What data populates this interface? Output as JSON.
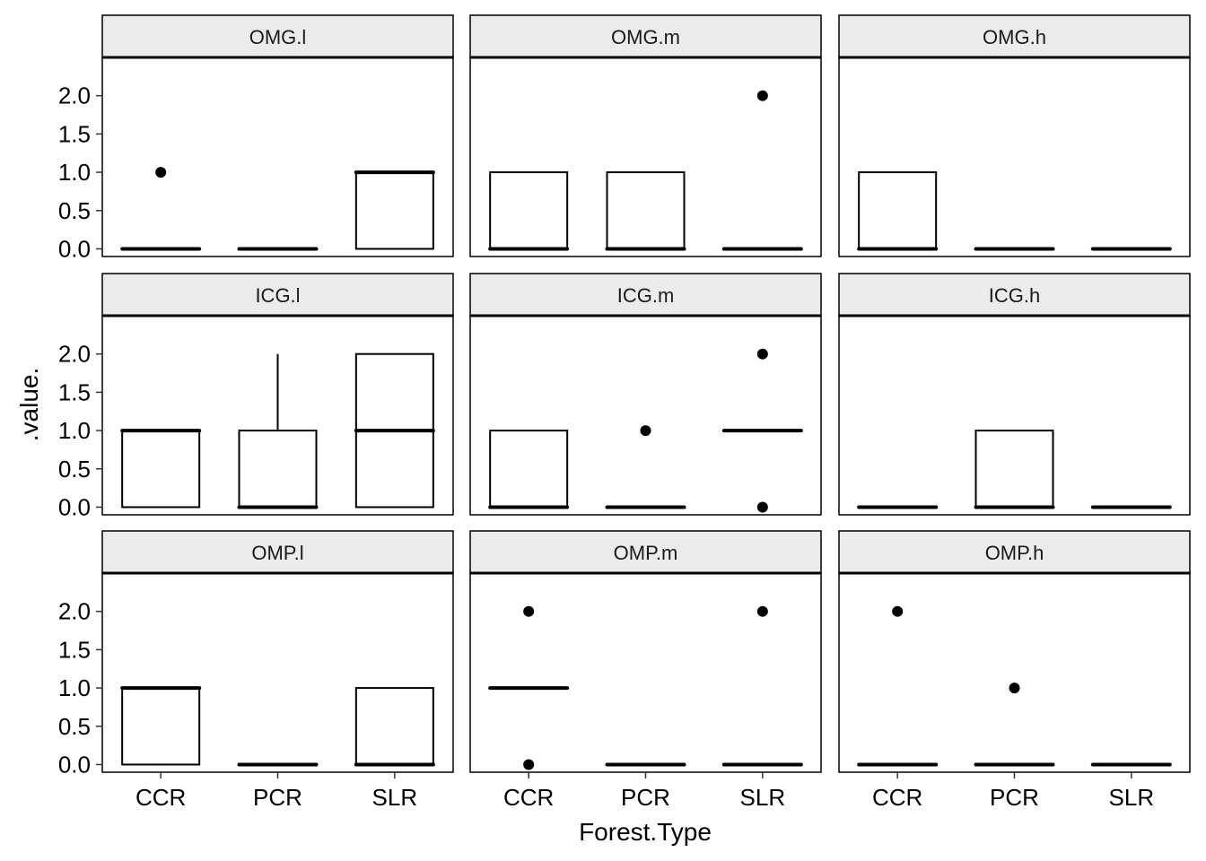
{
  "chart_data": {
    "type": "boxplot",
    "facet_layout": "3x3 grid",
    "xlabel": "Forest.Type",
    "ylabel": ".value.",
    "categories": [
      "CCR",
      "PCR",
      "SLR"
    ],
    "ylim": [
      -0.1,
      2.5
    ],
    "y_ticks": [
      "0.0",
      "0.5",
      "1.0",
      "1.5",
      "2.0"
    ],
    "grid": false,
    "colors": {
      "strip_fill": "#ebebeb",
      "line": "#000000",
      "background": "#ffffff"
    },
    "facets": [
      {
        "label": "OMG.l",
        "boxes": [
          {
            "category": "CCR",
            "q1": 0,
            "median": 0,
            "q3": 0,
            "whisker_low": 0,
            "whisker_high": 0,
            "outliers": [
              1
            ]
          },
          {
            "category": "PCR",
            "q1": 0,
            "median": 0,
            "q3": 0,
            "whisker_low": 0,
            "whisker_high": 0,
            "outliers": []
          },
          {
            "category": "SLR",
            "q1": 0,
            "median": 1,
            "q3": 1,
            "whisker_low": 0,
            "whisker_high": 1,
            "outliers": []
          }
        ]
      },
      {
        "label": "OMG.m",
        "boxes": [
          {
            "category": "CCR",
            "q1": 0,
            "median": 0,
            "q3": 1,
            "whisker_low": 0,
            "whisker_high": 1,
            "outliers": []
          },
          {
            "category": "PCR",
            "q1": 0,
            "median": 0,
            "q3": 1,
            "whisker_low": 0,
            "whisker_high": 1,
            "outliers": []
          },
          {
            "category": "SLR",
            "q1": 0,
            "median": 0,
            "q3": 0,
            "whisker_low": 0,
            "whisker_high": 0,
            "outliers": [
              2
            ]
          }
        ]
      },
      {
        "label": "OMG.h",
        "boxes": [
          {
            "category": "CCR",
            "q1": 0,
            "median": 0,
            "q3": 1,
            "whisker_low": 0,
            "whisker_high": 1,
            "outliers": []
          },
          {
            "category": "PCR",
            "q1": 0,
            "median": 0,
            "q3": 0,
            "whisker_low": 0,
            "whisker_high": 0,
            "outliers": []
          },
          {
            "category": "SLR",
            "q1": 0,
            "median": 0,
            "q3": 0,
            "whisker_low": 0,
            "whisker_high": 0,
            "outliers": []
          }
        ]
      },
      {
        "label": "ICG.l",
        "boxes": [
          {
            "category": "CCR",
            "q1": 0,
            "median": 1,
            "q3": 1,
            "whisker_low": 0,
            "whisker_high": 1,
            "outliers": []
          },
          {
            "category": "PCR",
            "q1": 0,
            "median": 0,
            "q3": 1,
            "whisker_low": 0,
            "whisker_high": 2,
            "outliers": []
          },
          {
            "category": "SLR",
            "q1": 0,
            "median": 1,
            "q3": 2,
            "whisker_low": 0,
            "whisker_high": 2,
            "outliers": []
          }
        ]
      },
      {
        "label": "ICG.m",
        "boxes": [
          {
            "category": "CCR",
            "q1": 0,
            "median": 0,
            "q3": 1,
            "whisker_low": 0,
            "whisker_high": 1,
            "outliers": []
          },
          {
            "category": "PCR",
            "q1": 0,
            "median": 0,
            "q3": 0,
            "whisker_low": 0,
            "whisker_high": 0,
            "outliers": [
              1
            ]
          },
          {
            "category": "SLR",
            "q1": 1,
            "median": 1,
            "q3": 1,
            "whisker_low": 1,
            "whisker_high": 1,
            "outliers": [
              2,
              0
            ]
          }
        ]
      },
      {
        "label": "ICG.h",
        "boxes": [
          {
            "category": "CCR",
            "q1": 0,
            "median": 0,
            "q3": 0,
            "whisker_low": 0,
            "whisker_high": 0,
            "outliers": []
          },
          {
            "category": "PCR",
            "q1": 0,
            "median": 0,
            "q3": 1,
            "whisker_low": 0,
            "whisker_high": 1,
            "outliers": []
          },
          {
            "category": "SLR",
            "q1": 0,
            "median": 0,
            "q3": 0,
            "whisker_low": 0,
            "whisker_high": 0,
            "outliers": []
          }
        ]
      },
      {
        "label": "OMP.l",
        "boxes": [
          {
            "category": "CCR",
            "q1": 0,
            "median": 1,
            "q3": 1,
            "whisker_low": 0,
            "whisker_high": 1,
            "outliers": []
          },
          {
            "category": "PCR",
            "q1": 0,
            "median": 0,
            "q3": 0,
            "whisker_low": 0,
            "whisker_high": 0,
            "outliers": []
          },
          {
            "category": "SLR",
            "q1": 0,
            "median": 0,
            "q3": 1,
            "whisker_low": 0,
            "whisker_high": 1,
            "outliers": []
          }
        ]
      },
      {
        "label": "OMP.m",
        "boxes": [
          {
            "category": "CCR",
            "q1": 1,
            "median": 1,
            "q3": 1,
            "whisker_low": 1,
            "whisker_high": 1,
            "outliers": [
              2,
              0
            ]
          },
          {
            "category": "PCR",
            "q1": 0,
            "median": 0,
            "q3": 0,
            "whisker_low": 0,
            "whisker_high": 0,
            "outliers": []
          },
          {
            "category": "SLR",
            "q1": 0,
            "median": 0,
            "q3": 0,
            "whisker_low": 0,
            "whisker_high": 0,
            "outliers": [
              2
            ]
          }
        ]
      },
      {
        "label": "OMP.h",
        "boxes": [
          {
            "category": "CCR",
            "q1": 0,
            "median": 0,
            "q3": 0,
            "whisker_low": 0,
            "whisker_high": 0,
            "outliers": [
              2
            ]
          },
          {
            "category": "PCR",
            "q1": 0,
            "median": 0,
            "q3": 0,
            "whisker_low": 0,
            "whisker_high": 0,
            "outliers": [
              1
            ]
          },
          {
            "category": "SLR",
            "q1": 0,
            "median": 0,
            "q3": 0,
            "whisker_low": 0,
            "whisker_high": 0,
            "outliers": []
          }
        ]
      }
    ]
  }
}
